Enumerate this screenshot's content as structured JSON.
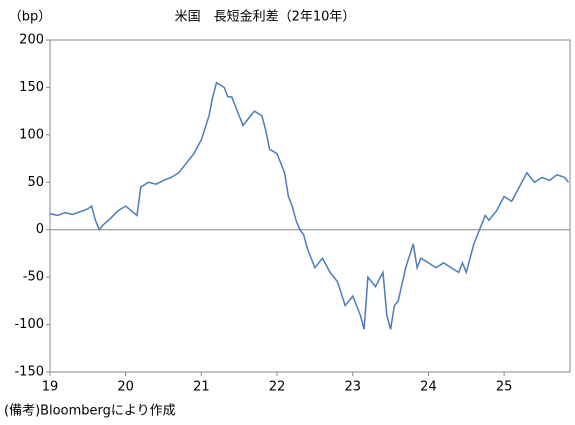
{
  "chart_data": {
    "type": "line",
    "title": "米国　長短金利差（2年10年）",
    "y_label": "（bp）",
    "note": "(備考)Bloombergにより作成",
    "x": [
      19.0,
      19.1,
      19.2,
      19.3,
      19.4,
      19.5,
      19.55,
      19.6,
      19.65,
      19.7,
      19.8,
      19.9,
      20.0,
      20.1,
      20.15,
      20.2,
      20.3,
      20.4,
      20.5,
      20.6,
      20.7,
      20.8,
      20.9,
      21.0,
      21.1,
      21.15,
      21.2,
      21.3,
      21.35,
      21.4,
      21.5,
      21.55,
      21.6,
      21.7,
      21.8,
      21.85,
      21.9,
      22.0,
      22.1,
      22.15,
      22.2,
      22.25,
      22.3,
      22.35,
      22.4,
      22.5,
      22.6,
      22.7,
      22.8,
      22.9,
      23.0,
      23.1,
      23.15,
      23.2,
      23.3,
      23.4,
      23.45,
      23.5,
      23.55,
      23.6,
      23.7,
      23.8,
      23.85,
      23.9,
      24.0,
      24.1,
      24.2,
      24.3,
      24.4,
      24.45,
      24.5,
      24.6,
      24.7,
      24.75,
      24.8,
      24.9,
      25.0,
      25.1,
      25.2,
      25.3,
      25.4,
      25.5,
      25.6,
      25.7,
      25.8,
      25.85
    ],
    "series": [
      {
        "name": "長短金利差",
        "color": "#4a7ebb",
        "values": [
          17,
          15,
          18,
          16,
          19,
          22,
          25,
          10,
          0,
          5,
          12,
          20,
          25,
          18,
          15,
          45,
          50,
          48,
          52,
          55,
          60,
          70,
          80,
          95,
          120,
          140,
          155,
          150,
          140,
          140,
          120,
          110,
          115,
          125,
          120,
          105,
          85,
          80,
          60,
          35,
          25,
          10,
          0,
          -5,
          -20,
          -40,
          -30,
          -45,
          -55,
          -80,
          -70,
          -90,
          -105,
          -50,
          -60,
          -45,
          -90,
          -105,
          -80,
          -75,
          -40,
          -15,
          -40,
          -30,
          -35,
          -40,
          -35,
          -40,
          -45,
          -35,
          -45,
          -15,
          5,
          15,
          10,
          20,
          35,
          30,
          45,
          60,
          50,
          55,
          52,
          58,
          55,
          50
        ]
      }
    ],
    "xlim": [
      19,
      25.87
    ],
    "xticks": [
      19,
      20,
      21,
      22,
      23,
      24,
      25
    ],
    "ylim": [
      -150,
      200
    ],
    "yticks": [
      -150,
      -100,
      -50,
      0,
      50,
      100,
      150,
      200
    ],
    "hline": 0
  }
}
